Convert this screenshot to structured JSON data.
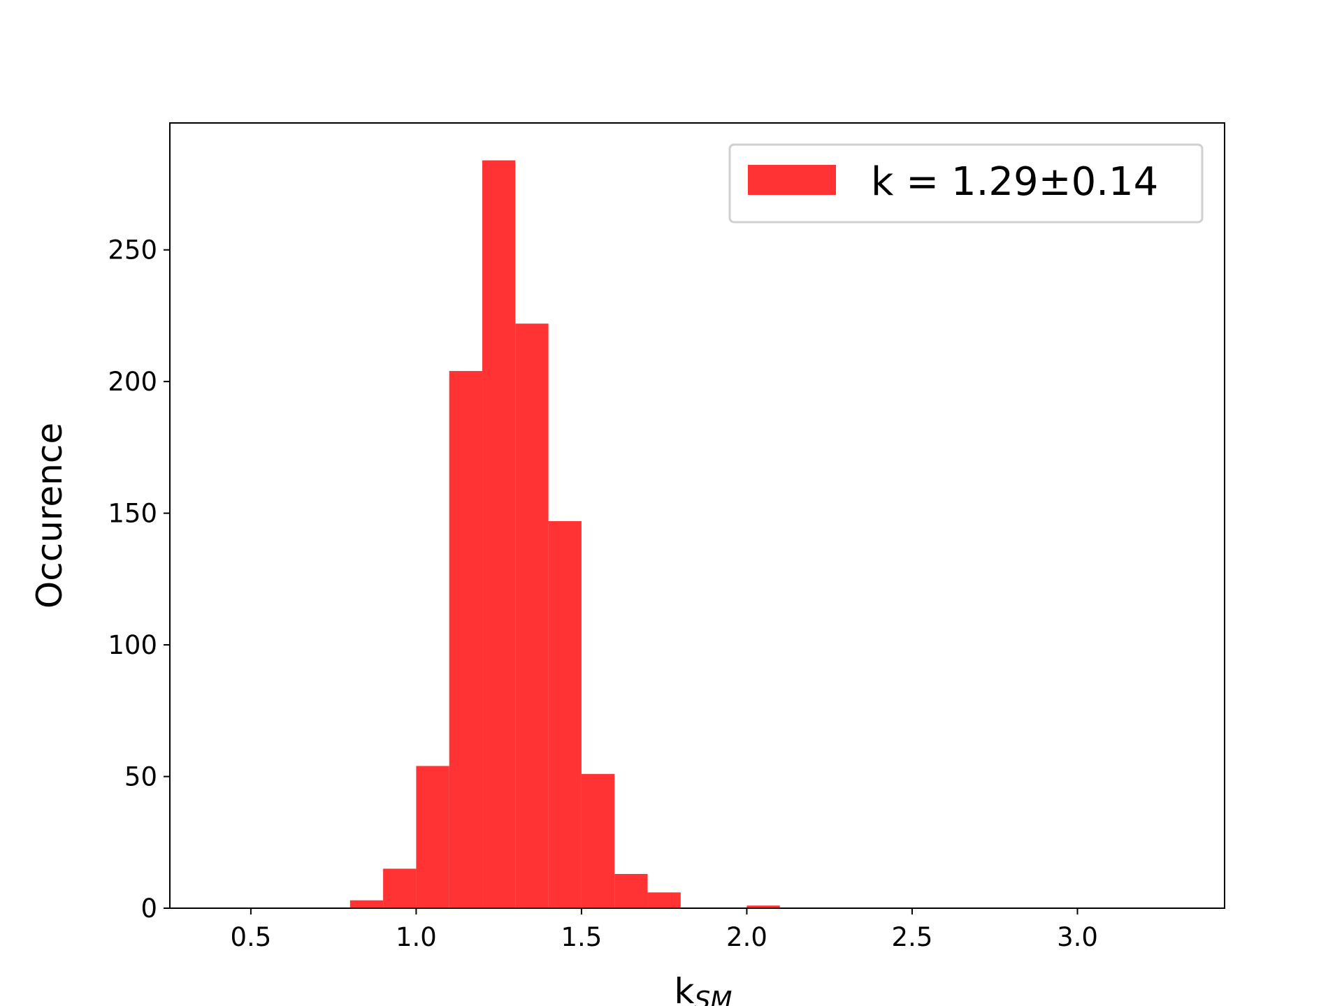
{
  "chart_data": {
    "type": "histogram",
    "xlabel": "k",
    "xlabel_subscript": "SM",
    "ylabel": "Occurence",
    "bins": [
      0.4,
      0.5,
      0.6,
      0.7,
      0.8,
      0.9,
      1.0,
      1.1,
      1.2,
      1.3,
      1.4,
      1.5,
      1.6,
      1.7,
      1.8,
      1.9,
      2.0,
      2.1,
      2.2,
      2.3,
      2.4,
      2.5,
      2.6,
      2.7,
      2.8,
      2.9,
      3.0,
      3.1,
      3.2,
      3.3
    ],
    "series": [
      {
        "name": "k = 1.29±0.14",
        "color": "#ff3333",
        "values": [
          0,
          0,
          0,
          0,
          3,
          15,
          54,
          204,
          284,
          222,
          147,
          51,
          13,
          6,
          0,
          0,
          1,
          0,
          0,
          0,
          0,
          0,
          0,
          0,
          0,
          0,
          0,
          0,
          0
        ]
      }
    ],
    "xlim": [
      0.255,
      3.445
    ],
    "ylim": [
      0,
      298.2
    ],
    "xticks": [
      {
        "value": 0.5,
        "label": "0.5"
      },
      {
        "value": 1.0,
        "label": "1.0"
      },
      {
        "value": 1.5,
        "label": "1.5"
      },
      {
        "value": 2.0,
        "label": "2.0"
      },
      {
        "value": 2.5,
        "label": "2.5"
      },
      {
        "value": 3.0,
        "label": "3.0"
      }
    ],
    "yticks": [
      0,
      50,
      100,
      150,
      200,
      250
    ],
    "legend": "upper right"
  }
}
